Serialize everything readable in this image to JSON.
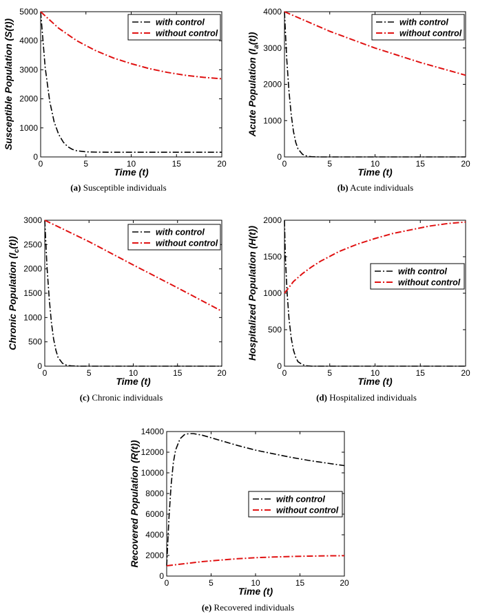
{
  "figure": {
    "colors": {
      "control": "#000000",
      "nocontrol": "#e01010"
    }
  },
  "chart_data": [
    {
      "type": "line",
      "id": "a",
      "caption_prefix": "(a)",
      "caption_text": "Susceptible individuals",
      "title": "",
      "xlabel": "Time (t)",
      "ylabel": {
        "pre": "Susceptible Population (S(t))",
        "sub": "",
        "post": ""
      },
      "xlim": [
        0,
        20
      ],
      "ylim": [
        0,
        5000
      ],
      "xticks": [
        0,
        5,
        10,
        15,
        20
      ],
      "yticks": [
        0,
        1000,
        2000,
        3000,
        4000,
        5000
      ],
      "legend": {
        "position": "top-right",
        "entries": [
          "with control",
          "without control"
        ]
      },
      "series": [
        {
          "name": "with control",
          "style": "dash-dot",
          "color": "#000000",
          "x": [
            0,
            0.5,
            1,
            1.5,
            2,
            2.5,
            3,
            3.5,
            4,
            5,
            6,
            8,
            10,
            12,
            14,
            16,
            18,
            20
          ],
          "y": [
            5000,
            3080,
            1910,
            1200,
            770,
            510,
            350,
            260,
            210,
            175,
            165,
            162,
            161,
            160,
            160,
            160,
            160,
            160
          ]
        },
        {
          "name": "without control",
          "style": "dash-dot",
          "color": "#e01010",
          "x": [
            0,
            2,
            4,
            6,
            8,
            10,
            12,
            14,
            16,
            18,
            20
          ],
          "y": [
            5000,
            4430,
            4000,
            3670,
            3410,
            3210,
            3040,
            2910,
            2810,
            2740,
            2690
          ]
        }
      ]
    },
    {
      "type": "line",
      "id": "b",
      "caption_prefix": "(b)",
      "caption_text": "Acute individuals",
      "title": "",
      "xlabel": "Time (t)",
      "ylabel": {
        "pre": "Acute Population (I",
        "sub": "a",
        "post": "(t))"
      },
      "xlim": [
        0,
        20
      ],
      "ylim": [
        0,
        4000
      ],
      "xticks": [
        0,
        5,
        10,
        15,
        20
      ],
      "yticks": [
        0,
        1000,
        2000,
        3000,
        4000
      ],
      "legend": {
        "position": "top-right",
        "entries": [
          "with control",
          "without control"
        ]
      },
      "series": [
        {
          "name": "with control",
          "style": "dash-dot",
          "color": "#000000",
          "x": [
            0,
            0.25,
            0.5,
            0.75,
            1,
            1.25,
            1.5,
            2,
            2.5,
            3,
            4,
            6,
            10,
            15,
            20
          ],
          "y": [
            4000,
            2700,
            1800,
            1150,
            700,
            400,
            220,
            70,
            20,
            5,
            0,
            0,
            0,
            0,
            0
          ]
        },
        {
          "name": "without control",
          "style": "dash-dot",
          "color": "#e01010",
          "x": [
            0,
            5,
            10,
            15,
            20
          ],
          "y": [
            4000,
            3460,
            3000,
            2600,
            2250
          ]
        }
      ]
    },
    {
      "type": "line",
      "id": "c",
      "caption_prefix": "(c)",
      "caption_text": "Chronic individuals",
      "title": "",
      "xlabel": "Time (t)",
      "ylabel": {
        "pre": "Chronic Population (I",
        "sub": "c",
        "post": "(t))"
      },
      "xlim": [
        0,
        20
      ],
      "ylim": [
        0,
        3000
      ],
      "xticks": [
        0,
        5,
        10,
        15,
        20
      ],
      "yticks": [
        0,
        500,
        1000,
        1500,
        2000,
        2500,
        3000
      ],
      "legend": {
        "position": "top-right",
        "entries": [
          "with control",
          "without control"
        ]
      },
      "series": [
        {
          "name": "with control",
          "style": "dash-dot",
          "color": "#000000",
          "x": [
            0,
            0.25,
            0.5,
            0.75,
            1,
            1.25,
            1.5,
            2,
            2.5,
            3,
            4,
            6,
            10,
            15,
            20
          ],
          "y": [
            3000,
            2050,
            1400,
            900,
            560,
            330,
            180,
            60,
            15,
            5,
            0,
            0,
            0,
            0,
            0
          ]
        },
        {
          "name": "without control",
          "style": "dash-dot",
          "color": "#e01010",
          "x": [
            0,
            5,
            10,
            15,
            20
          ],
          "y": [
            3000,
            2560,
            2080,
            1610,
            1130
          ]
        }
      ]
    },
    {
      "type": "line",
      "id": "d",
      "caption_prefix": "(d)",
      "caption_text": "Hospitalized individuals",
      "title": "",
      "xlabel": "Time (t)",
      "ylabel": {
        "pre": "Hospitalized Population (H(t))",
        "sub": "",
        "post": ""
      },
      "xlim": [
        0,
        20
      ],
      "ylim": [
        0,
        2000
      ],
      "xticks": [
        0,
        5,
        10,
        15,
        20
      ],
      "yticks": [
        0,
        500,
        1000,
        1500,
        2000
      ],
      "legend": {
        "position": "right",
        "entries": [
          "with control",
          "without control"
        ]
      },
      "series": [
        {
          "name": "with control",
          "style": "dash-dot",
          "color": "#000000",
          "x": [
            0,
            0.1,
            0.3,
            0.5,
            0.75,
            1,
            1.25,
            1.5,
            2,
            2.5,
            3,
            4,
            6,
            10,
            15,
            20
          ],
          "y": [
            2000,
            1500,
            1000,
            650,
            380,
            220,
            120,
            60,
            20,
            5,
            0,
            0,
            0,
            0,
            0,
            0
          ]
        },
        {
          "name": "without control",
          "style": "dash-dot",
          "color": "#e01010",
          "x": [
            0,
            0.5,
            1,
            2,
            3,
            4,
            6,
            8,
            10,
            12,
            14,
            16,
            18,
            20
          ],
          "y": [
            1000,
            1080,
            1160,
            1270,
            1360,
            1440,
            1570,
            1670,
            1750,
            1820,
            1870,
            1920,
            1955,
            1975
          ]
        }
      ]
    },
    {
      "type": "line",
      "id": "e",
      "caption_prefix": "(e)",
      "caption_text": "Recovered individuals",
      "title": "",
      "xlabel": "Time (t)",
      "ylabel": {
        "pre": "Recovered Population (R(t))",
        "sub": "",
        "post": ""
      },
      "xlim": [
        0,
        20
      ],
      "ylim": [
        0,
        14000
      ],
      "xticks": [
        0,
        5,
        10,
        15,
        20
      ],
      "yticks": [
        0,
        2000,
        4000,
        6000,
        8000,
        10000,
        12000,
        14000
      ],
      "legend": {
        "position": "right",
        "entries": [
          "with control",
          "without control"
        ]
      },
      "series": [
        {
          "name": "with control",
          "style": "dash-dot",
          "color": "#000000",
          "x": [
            0,
            0.25,
            0.5,
            0.75,
            1,
            1.5,
            2,
            2.5,
            3,
            4,
            5,
            6,
            8,
            10,
            12,
            14,
            16,
            18,
            20
          ],
          "y": [
            1000,
            5500,
            8800,
            11000,
            12200,
            13300,
            13700,
            13800,
            13800,
            13650,
            13400,
            13150,
            12650,
            12200,
            11850,
            11500,
            11200,
            10950,
            10700
          ]
        },
        {
          "name": "without control",
          "style": "dash-dot",
          "color": "#e01010",
          "x": [
            0,
            2,
            4,
            6,
            8,
            10,
            12,
            14,
            16,
            18,
            20
          ],
          "y": [
            1000,
            1200,
            1400,
            1550,
            1680,
            1780,
            1850,
            1900,
            1930,
            1960,
            1975
          ]
        }
      ]
    }
  ]
}
